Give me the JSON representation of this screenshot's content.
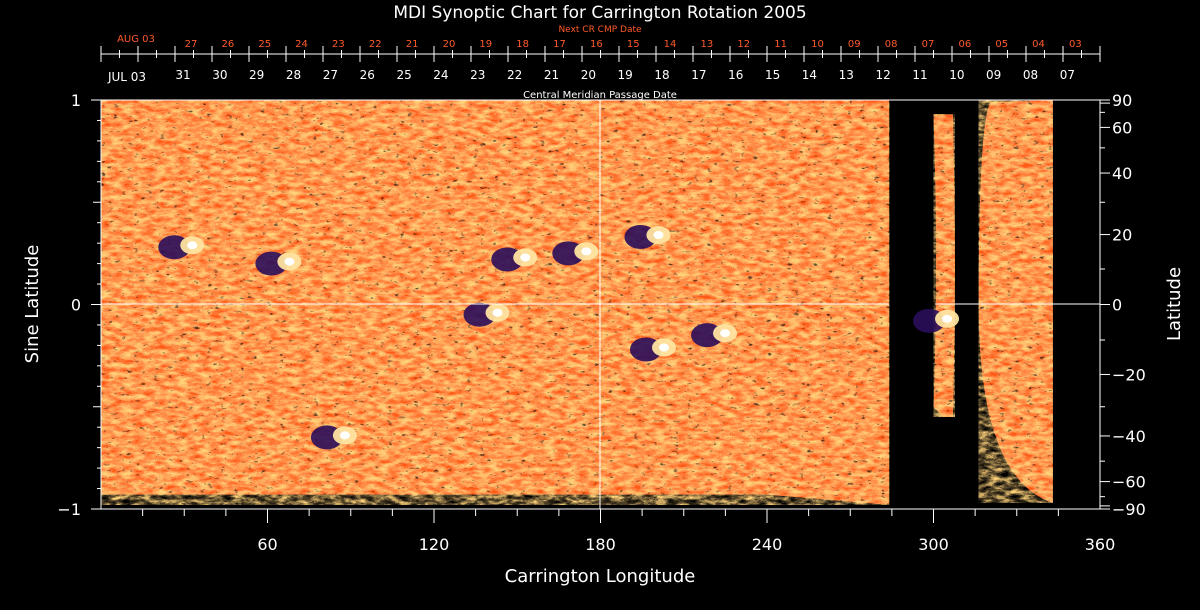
{
  "chart_data": {
    "type": "heatmap",
    "title": "MDI Synoptic Chart for Carrington Rotation 2005",
    "xlabel": "Carrington Longitude",
    "ylabel_left": "Sine Latitude",
    "ylabel_right": "Latitude",
    "xlim": [
      0,
      360
    ],
    "ylim": [
      -1,
      1
    ],
    "x_ticks": [
      60,
      120,
      180,
      240,
      300,
      360
    ],
    "y_ticks_left": [
      1,
      0,
      -1
    ],
    "y_ticks_right": [
      90,
      60,
      40,
      20,
      0,
      -20,
      -40,
      -60,
      -90
    ],
    "top_axis_label": "Central Meridian Passage Date",
    "top_axis_start": "JUL 03",
    "top_axis_dates": [
      "31",
      "30",
      "29",
      "28",
      "27",
      "26",
      "25",
      "24",
      "23",
      "22",
      "21",
      "20",
      "19",
      "18",
      "17",
      "16",
      "15",
      "14",
      "13",
      "12",
      "11",
      "10",
      "09",
      "08",
      "07"
    ],
    "next_cr_label": "Next CR CMP Date",
    "next_cr_start": "AUG 03",
    "next_cr_dates": [
      "27",
      "26",
      "25",
      "24",
      "23",
      "22",
      "21",
      "20",
      "19",
      "18",
      "17",
      "16",
      "15",
      "14",
      "13",
      "12",
      "11",
      "10",
      "09",
      "08",
      "07",
      "06",
      "05",
      "04",
      "03"
    ],
    "colormap": [
      "#2a0d5a",
      "#c8200a",
      "#ff5a14",
      "#ff9a2a",
      "#ffe4a0",
      "#ffffff"
    ],
    "data_coverage": [
      {
        "lon_start": 0,
        "lon_end": 284,
        "note": "full coverage"
      },
      {
        "lon_start": 300,
        "lon_end": 307,
        "note": "partial strip"
      },
      {
        "lon_start": 317,
        "lon_end": 343,
        "note": "partial coverage"
      }
    ],
    "active_regions": [
      {
        "lon": 30,
        "sinlat": 0.28,
        "polarity": "mixed"
      },
      {
        "lon": 65,
        "sinlat": 0.2,
        "polarity": "mixed"
      },
      {
        "lon": 140,
        "sinlat": -0.05,
        "polarity": "mixed"
      },
      {
        "lon": 150,
        "sinlat": 0.22,
        "polarity": "mixed"
      },
      {
        "lon": 172,
        "sinlat": 0.25,
        "polarity": "mixed"
      },
      {
        "lon": 198,
        "sinlat": 0.33,
        "polarity": "mixed"
      },
      {
        "lon": 200,
        "sinlat": -0.22,
        "polarity": "mixed"
      },
      {
        "lon": 222,
        "sinlat": -0.15,
        "polarity": "mixed"
      },
      {
        "lon": 302,
        "sinlat": -0.08,
        "polarity": "mixed"
      },
      {
        "lon": 85,
        "sinlat": -0.65,
        "polarity": "mixed"
      }
    ]
  }
}
